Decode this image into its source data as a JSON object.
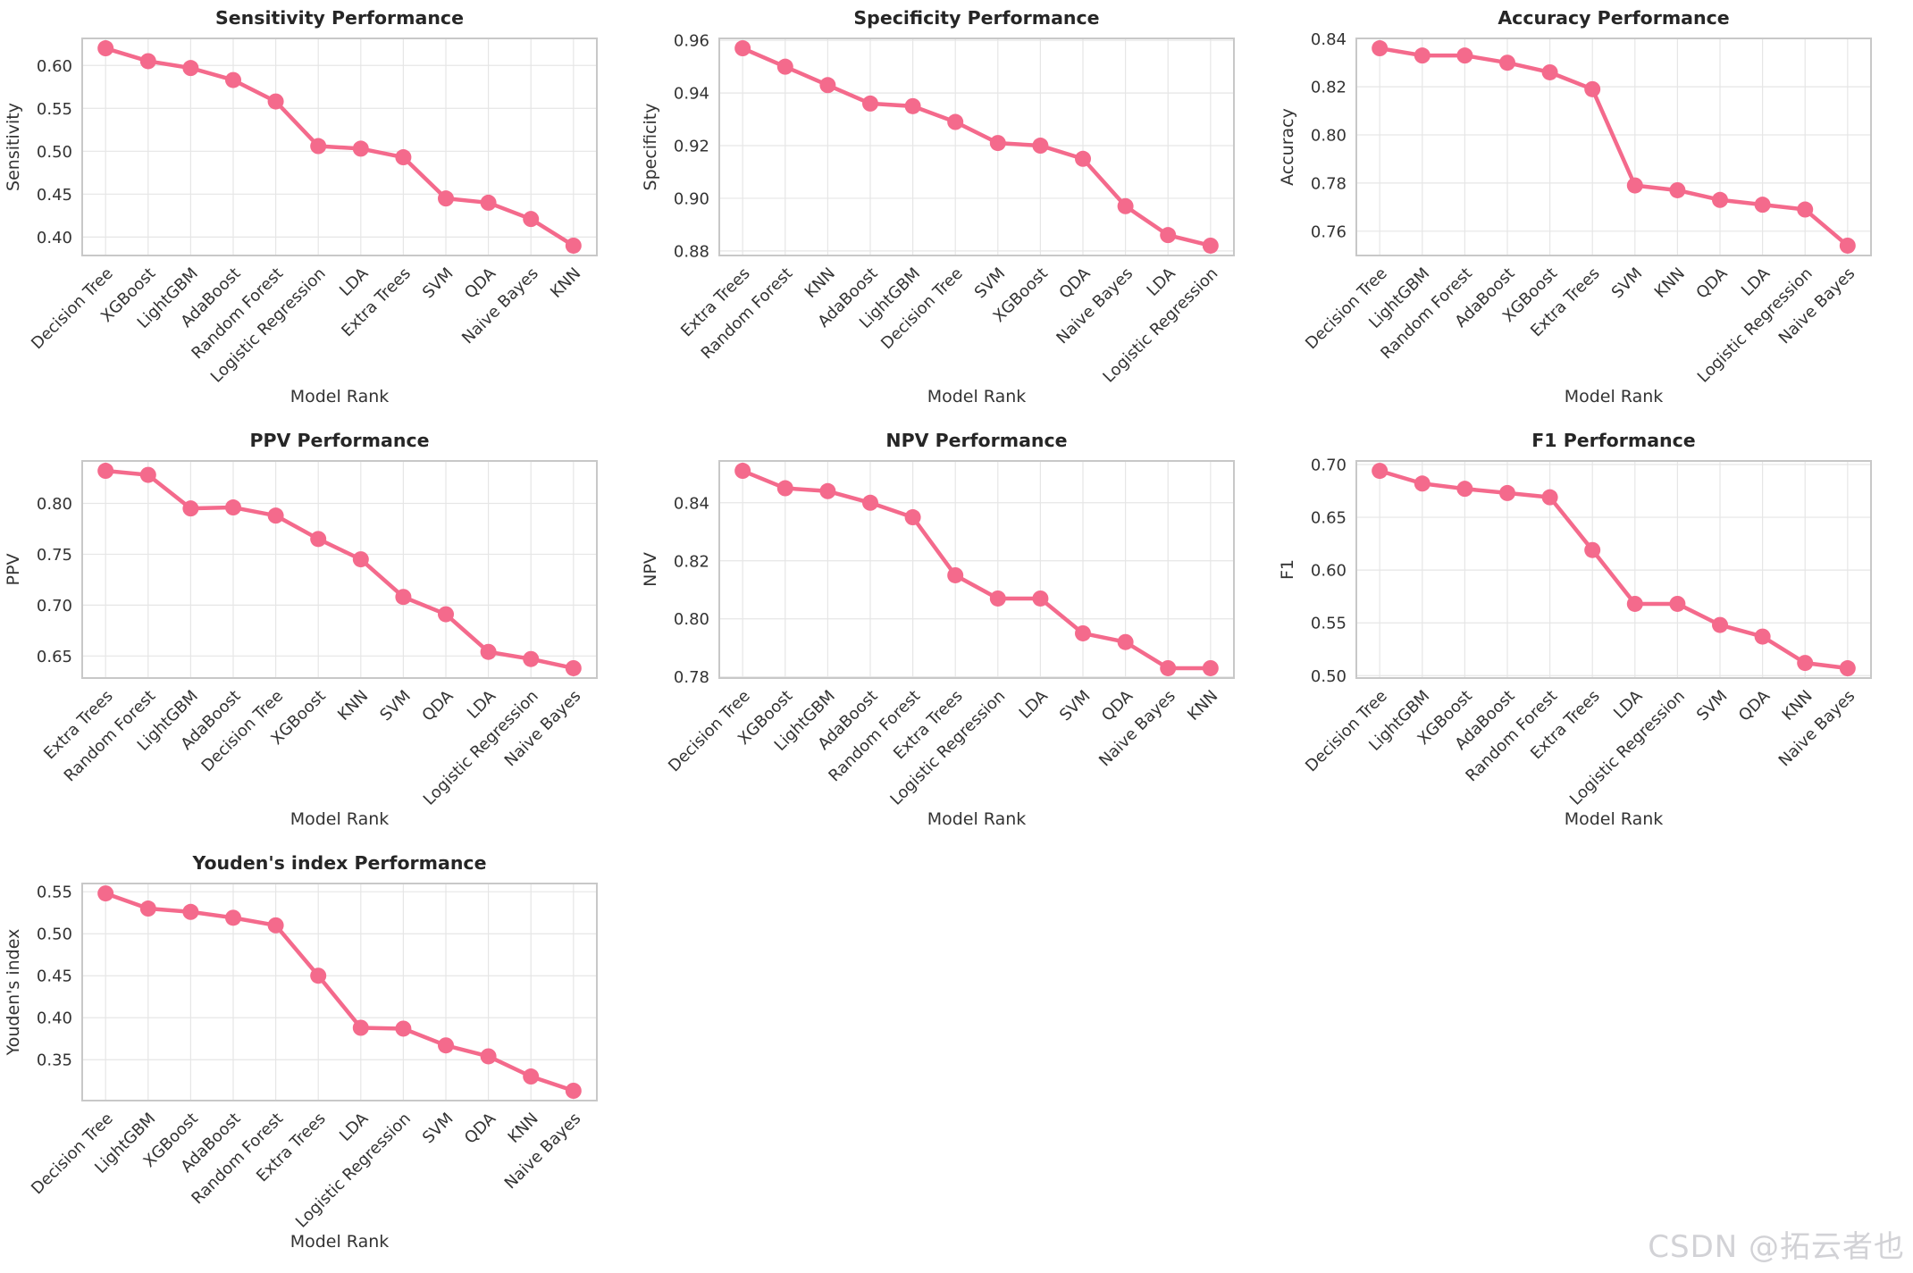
{
  "figure": {
    "xlabel": "Model Rank",
    "line_color": "#f46a8c",
    "grid_color": "#e6e6e6",
    "border_color": "#c8c8c8",
    "title_color": "#262626",
    "tick_color": "#333333"
  },
  "watermark": {
    "text": "CSDN @拓云者也"
  },
  "chart_data": [
    {
      "type": "line",
      "title": "Sensitivity Performance",
      "xlabel": "Model Rank",
      "ylabel": "Sensitivity",
      "categories": [
        "Decision Tree",
        "XGBoost",
        "LightGBM",
        "AdaBoost",
        "Random Forest",
        "Logistic Regression",
        "LDA",
        "Extra Trees",
        "SVM",
        "QDA",
        "Naive Bayes",
        "KNN"
      ],
      "values": [
        0.62,
        0.605,
        0.597,
        0.583,
        0.558,
        0.506,
        0.503,
        0.493,
        0.445,
        0.44,
        0.421,
        0.39
      ],
      "yticks": [
        "0.40",
        "0.45",
        "0.50",
        "0.55",
        "0.60"
      ],
      "ylim": [
        0.3785,
        0.6315
      ],
      "grid": true,
      "legend": "none"
    },
    {
      "type": "line",
      "title": "Specificity Performance",
      "xlabel": "Model Rank",
      "ylabel": "Specificity",
      "categories": [
        "Extra Trees",
        "Random Forest",
        "KNN",
        "AdaBoost",
        "LightGBM",
        "Decision Tree",
        "SVM",
        "XGBoost",
        "QDA",
        "Naive Bayes",
        "LDA",
        "Logistic Regression"
      ],
      "values": [
        0.957,
        0.95,
        0.943,
        0.936,
        0.935,
        0.929,
        0.921,
        0.92,
        0.915,
        0.897,
        0.886,
        0.882
      ],
      "yticks": [
        "0.88",
        "0.90",
        "0.92",
        "0.94",
        "0.96"
      ],
      "ylim": [
        0.87825,
        0.96075
      ],
      "grid": true,
      "legend": "none"
    },
    {
      "type": "line",
      "title": "Accuracy Performance",
      "xlabel": "Model Rank",
      "ylabel": "Accuracy",
      "categories": [
        "Decision Tree",
        "LightGBM",
        "Random Forest",
        "AdaBoost",
        "XGBoost",
        "Extra Trees",
        "SVM",
        "KNN",
        "QDA",
        "LDA",
        "Logistic Regression",
        "Naive Bayes"
      ],
      "values": [
        0.836,
        0.833,
        0.833,
        0.83,
        0.826,
        0.819,
        0.779,
        0.777,
        0.773,
        0.771,
        0.769,
        0.754
      ],
      "yticks": [
        "0.76",
        "0.78",
        "0.80",
        "0.82",
        "0.84"
      ],
      "ylim": [
        0.7499,
        0.8401
      ],
      "grid": true,
      "legend": "none"
    },
    {
      "type": "line",
      "title": "PPV Performance",
      "xlabel": "Model Rank",
      "ylabel": "PPV",
      "categories": [
        "Extra Trees",
        "Random Forest",
        "LightGBM",
        "AdaBoost",
        "Decision Tree",
        "XGBoost",
        "KNN",
        "SVM",
        "QDA",
        "LDA",
        "Logistic Regression",
        "Naive Bayes"
      ],
      "values": [
        0.832,
        0.828,
        0.795,
        0.796,
        0.788,
        0.765,
        0.745,
        0.708,
        0.691,
        0.654,
        0.647,
        0.638
      ],
      "yticks": [
        "0.65",
        "0.70",
        "0.75",
        "0.80"
      ],
      "ylim": [
        0.6283,
        0.8417
      ],
      "grid": true,
      "legend": "none"
    },
    {
      "type": "line",
      "title": "NPV Performance",
      "xlabel": "Model Rank",
      "ylabel": "NPV",
      "categories": [
        "Decision Tree",
        "XGBoost",
        "LightGBM",
        "AdaBoost",
        "Random Forest",
        "Extra Trees",
        "Logistic Regression",
        "LDA",
        "SVM",
        "QDA",
        "Naive Bayes",
        "KNN"
      ],
      "values": [
        0.851,
        0.845,
        0.844,
        0.84,
        0.835,
        0.815,
        0.807,
        0.807,
        0.795,
        0.792,
        0.783,
        0.783
      ],
      "yticks": [
        "0.78",
        "0.80",
        "0.82",
        "0.84"
      ],
      "ylim": [
        0.7796,
        0.8544
      ],
      "grid": true,
      "legend": "none"
    },
    {
      "type": "line",
      "title": "F1 Performance",
      "xlabel": "Model Rank",
      "ylabel": "F1",
      "categories": [
        "Decision Tree",
        "LightGBM",
        "XGBoost",
        "AdaBoost",
        "Random Forest",
        "Extra Trees",
        "LDA",
        "Logistic Regression",
        "SVM",
        "QDA",
        "KNN",
        "Naive Bayes"
      ],
      "values": [
        0.694,
        0.682,
        0.677,
        0.673,
        0.669,
        0.619,
        0.568,
        0.568,
        0.548,
        0.537,
        0.512,
        0.507
      ],
      "yticks": [
        "0.50",
        "0.55",
        "0.60",
        "0.65",
        "0.70"
      ],
      "ylim": [
        0.4977,
        0.7034
      ],
      "grid": true,
      "legend": "none"
    },
    {
      "type": "line",
      "title": "Youden's index Performance",
      "xlabel": "Model Rank",
      "ylabel": "Youden's index",
      "categories": [
        "Decision Tree",
        "LightGBM",
        "XGBoost",
        "AdaBoost",
        "Random Forest",
        "Extra Trees",
        "LDA",
        "Logistic Regression",
        "SVM",
        "QDA",
        "KNN",
        "Naive Bayes"
      ],
      "values": [
        0.548,
        0.53,
        0.526,
        0.519,
        0.51,
        0.45,
        0.388,
        0.387,
        0.367,
        0.354,
        0.33,
        0.313
      ],
      "yticks": [
        "0.35",
        "0.40",
        "0.45",
        "0.50",
        "0.55"
      ],
      "ylim": [
        0.3013,
        0.5598
      ],
      "grid": true,
      "legend": "none"
    }
  ]
}
